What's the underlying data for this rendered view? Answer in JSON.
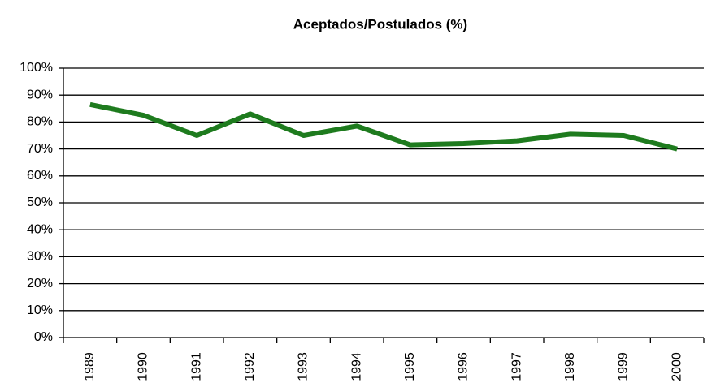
{
  "chart_data": {
    "type": "line",
    "title": "Aceptados/Postulados (%)",
    "categories": [
      "1989",
      "1990",
      "1991",
      "1992",
      "1993",
      "1994",
      "1995",
      "1996",
      "1997",
      "1998",
      "1999",
      "2000"
    ],
    "series": [
      {
        "name": "Aceptados/Postulados",
        "color": "#1e7b1e",
        "values": [
          86.5,
          82.5,
          75,
          83,
          75,
          78.5,
          71.5,
          72,
          73,
          75.5,
          75,
          70
        ]
      }
    ],
    "ylim": [
      0,
      100
    ],
    "yticks": [
      {
        "value": 0,
        "label": "0%"
      },
      {
        "value": 10,
        "label": "10%"
      },
      {
        "value": 20,
        "label": "20%"
      },
      {
        "value": 30,
        "label": "30%"
      },
      {
        "value": 40,
        "label": "40%"
      },
      {
        "value": 50,
        "label": "50%"
      },
      {
        "value": 60,
        "label": "60%"
      },
      {
        "value": 70,
        "label": "70%"
      },
      {
        "value": 80,
        "label": "80%"
      },
      {
        "value": 90,
        "label": "90%"
      },
      {
        "value": 100,
        "label": "100%"
      }
    ],
    "grid": true
  }
}
